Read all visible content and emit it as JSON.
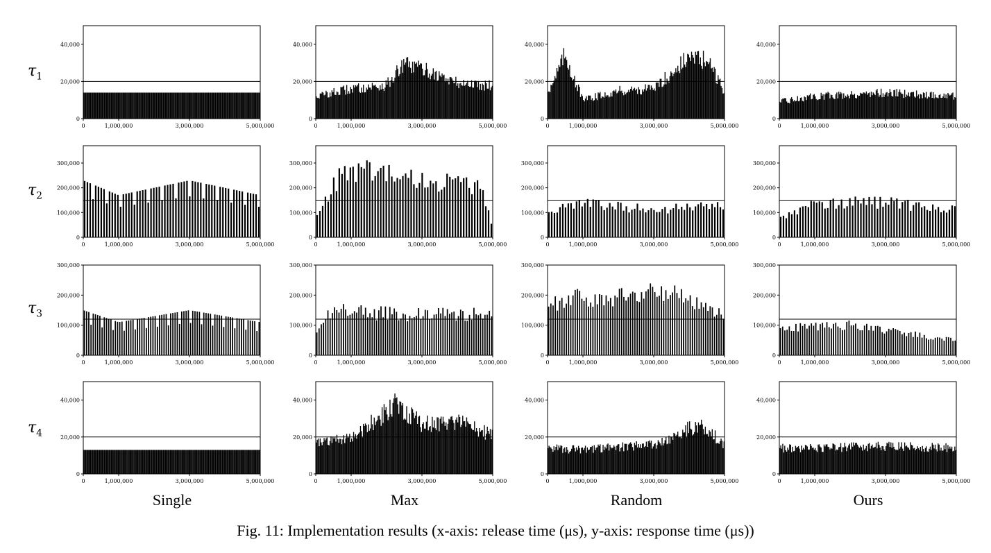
{
  "caption": "Fig. 11: Implementation results (x-axis: release time (μs), y-axis: response time (μs))",
  "columns": [
    "Single",
    "Max",
    "Random",
    "Ours"
  ],
  "rows": [
    {
      "sym": "τ",
      "sub": "1"
    },
    {
      "sym": "τ",
      "sub": "2"
    },
    {
      "sym": "τ",
      "sub": "3"
    },
    {
      "sym": "τ",
      "sub": "4"
    }
  ],
  "x_ticks": [
    "0",
    "1,000,000",
    "3,000,000",
    "5,000,000"
  ],
  "x_tick_values": [
    0,
    1000000,
    3000000,
    5000000
  ],
  "bar_color": "#000000",
  "chart_data": [
    {
      "type": "bar",
      "row": "τ1",
      "column": "Single",
      "xlim": [
        0,
        5000000
      ],
      "ylim": [
        0,
        50000
      ],
      "y_ticks": [
        0,
        20000,
        40000
      ],
      "y_tick_labels": [
        "0",
        "20,000",
        "40,000"
      ],
      "threshold": 20000,
      "bar_count": 180,
      "x": [
        0,
        1000000,
        2000000,
        3000000,
        4000000,
        5000000
      ],
      "values": [
        14000,
        14000,
        14000,
        14000,
        14000,
        14000
      ]
    },
    {
      "type": "bar",
      "row": "τ1",
      "column": "Max",
      "xlim": [
        0,
        5000000
      ],
      "ylim": [
        0,
        50000
      ],
      "y_ticks": [
        0,
        20000,
        40000
      ],
      "y_tick_labels": [
        "0",
        "20,000",
        "40,000"
      ],
      "threshold": 20000,
      "bar_count": 180,
      "x": [
        0,
        1000000,
        2000000,
        2500000,
        3000000,
        4000000,
        5000000
      ],
      "values": [
        12000,
        16000,
        18000,
        29000,
        27000,
        19000,
        18000
      ]
    },
    {
      "type": "bar",
      "row": "τ1",
      "column": "Random",
      "xlim": [
        0,
        5000000
      ],
      "ylim": [
        0,
        50000
      ],
      "y_ticks": [
        0,
        20000,
        40000
      ],
      "y_tick_labels": [
        "0",
        "20,000",
        "40,000"
      ],
      "threshold": 20000,
      "bar_count": 180,
      "x": [
        0,
        500000,
        1000000,
        2000000,
        3000000,
        4000000,
        4500000,
        5000000
      ],
      "values": [
        14000,
        34000,
        10000,
        15000,
        16000,
        33000,
        31000,
        15000
      ]
    },
    {
      "type": "bar",
      "row": "τ1",
      "column": "Ours",
      "xlim": [
        0,
        5000000
      ],
      "ylim": [
        0,
        50000
      ],
      "y_ticks": [
        0,
        20000,
        40000
      ],
      "y_tick_labels": [
        "0",
        "20,000",
        "40,000"
      ],
      "threshold": 20000,
      "bar_count": 180,
      "x": [
        0,
        1000000,
        2000000,
        3000000,
        4000000,
        5000000
      ],
      "values": [
        9000,
        12000,
        13000,
        14000,
        13000,
        12000
      ]
    },
    {
      "type": "bar",
      "row": "τ2",
      "column": "Single",
      "xlim": [
        0,
        5000000
      ],
      "ylim": [
        0,
        370000
      ],
      "y_ticks": [
        0,
        100000,
        200000,
        300000
      ],
      "y_tick_labels": [
        "0",
        "100,000",
        "200,000",
        "300,000"
      ],
      "threshold": 150000,
      "bar_count": 64,
      "x": [
        0,
        1000000,
        3000000,
        5000000
      ],
      "values": [
        230000,
        170000,
        230000,
        170000
      ]
    },
    {
      "type": "bar",
      "row": "τ2",
      "column": "Max",
      "xlim": [
        0,
        5000000
      ],
      "ylim": [
        0,
        370000
      ],
      "y_ticks": [
        0,
        100000,
        200000,
        300000
      ],
      "y_tick_labels": [
        "0",
        "100,000",
        "200,000",
        "300,000"
      ],
      "threshold": 150000,
      "bar_count": 64,
      "x": [
        0,
        700000,
        1700000,
        2300000,
        4700000,
        5000000
      ],
      "values": [
        80000,
        255000,
        270000,
        240000,
        205000,
        40000
      ]
    },
    {
      "type": "bar",
      "row": "τ2",
      "column": "Random",
      "xlim": [
        0,
        5000000
      ],
      "ylim": [
        0,
        370000
      ],
      "y_ticks": [
        0,
        100000,
        200000,
        300000
      ],
      "y_tick_labels": [
        "0",
        "100,000",
        "200,000",
        "300,000"
      ],
      "threshold": 150000,
      "bar_count": 64,
      "x": [
        0,
        1000000,
        3000000,
        5000000
      ],
      "values": [
        100000,
        140000,
        110000,
        130000
      ]
    },
    {
      "type": "bar",
      "row": "τ2",
      "column": "Ours",
      "xlim": [
        0,
        5000000
      ],
      "ylim": [
        0,
        370000
      ],
      "y_ticks": [
        0,
        100000,
        200000,
        300000
      ],
      "y_tick_labels": [
        "0",
        "100,000",
        "200,000",
        "300,000"
      ],
      "threshold": 150000,
      "bar_count": 64,
      "x": [
        0,
        1000000,
        3000000,
        5000000
      ],
      "values": [
        80000,
        140000,
        140000,
        110000
      ]
    },
    {
      "type": "bar",
      "row": "τ3",
      "column": "Single",
      "xlim": [
        0,
        5000000
      ],
      "ylim": [
        0,
        300000
      ],
      "y_ticks": [
        0,
        100000,
        200000,
        300000
      ],
      "y_tick_labels": [
        "0",
        "100,000",
        "200,000",
        "300,000"
      ],
      "threshold": 120000,
      "bar_count": 80,
      "x": [
        0,
        1000000,
        3000000,
        5000000
      ],
      "values": [
        150000,
        110000,
        150000,
        110000
      ]
    },
    {
      "type": "bar",
      "row": "τ3",
      "column": "Max",
      "xlim": [
        0,
        5000000
      ],
      "ylim": [
        0,
        300000
      ],
      "y_ticks": [
        0,
        100000,
        200000,
        300000
      ],
      "y_tick_labels": [
        "0",
        "100,000",
        "200,000",
        "300,000"
      ],
      "threshold": 120000,
      "bar_count": 80,
      "x": [
        0,
        500000,
        1500000,
        3300000,
        4800000
      ],
      "values": [
        70000,
        160000,
        140000,
        135000,
        135000
      ]
    },
    {
      "type": "bar",
      "row": "τ3",
      "column": "Random",
      "xlim": [
        0,
        5000000
      ],
      "ylim": [
        0,
        300000
      ],
      "y_ticks": [
        0,
        100000,
        200000,
        300000
      ],
      "y_tick_labels": [
        "0",
        "100,000",
        "200,000",
        "300,000"
      ],
      "threshold": 120000,
      "bar_count": 80,
      "x": [
        0,
        700000,
        1200000,
        3000000,
        3600000,
        5000000
      ],
      "values": [
        160000,
        200000,
        175000,
        210000,
        210000,
        140000
      ]
    },
    {
      "type": "bar",
      "row": "τ3",
      "column": "Ours",
      "xlim": [
        0,
        5000000
      ],
      "ylim": [
        0,
        300000
      ],
      "y_ticks": [
        0,
        100000,
        200000,
        300000
      ],
      "y_tick_labels": [
        "0",
        "100,000",
        "200,000",
        "300,000"
      ],
      "threshold": 120000,
      "bar_count": 80,
      "x": [
        0,
        2000000,
        3000000,
        5000000
      ],
      "values": [
        90000,
        100000,
        80000,
        50000
      ]
    },
    {
      "type": "bar",
      "row": "τ4",
      "column": "Single",
      "xlim": [
        0,
        5000000
      ],
      "ylim": [
        0,
        50000
      ],
      "y_ticks": [
        0,
        20000,
        40000
      ],
      "y_tick_labels": [
        "0",
        "20,000",
        "40,000"
      ],
      "threshold": 20000,
      "bar_count": 180,
      "x": [
        0,
        1000000,
        3000000,
        5000000
      ],
      "values": [
        13000,
        13000,
        13000,
        13000
      ]
    },
    {
      "type": "bar",
      "row": "τ4",
      "column": "Max",
      "xlim": [
        0,
        5000000
      ],
      "ylim": [
        0,
        50000
      ],
      "y_ticks": [
        0,
        20000,
        40000
      ],
      "y_tick_labels": [
        "0",
        "20,000",
        "40,000"
      ],
      "threshold": 20000,
      "bar_count": 180,
      "x": [
        0,
        1000000,
        2300000,
        3000000,
        4000000,
        5000000
      ],
      "values": [
        17000,
        19000,
        38000,
        27000,
        28000,
        21000
      ]
    },
    {
      "type": "bar",
      "row": "τ4",
      "column": "Random",
      "xlim": [
        0,
        5000000
      ],
      "ylim": [
        0,
        50000
      ],
      "y_ticks": [
        0,
        20000,
        40000
      ],
      "y_tick_labels": [
        "0",
        "20,000",
        "40,000"
      ],
      "threshold": 20000,
      "bar_count": 180,
      "x": [
        0,
        1000000,
        3000000,
        4300000,
        5000000
      ],
      "values": [
        14000,
        13000,
        16000,
        27000,
        16000
      ]
    },
    {
      "type": "bar",
      "row": "τ4",
      "column": "Ours",
      "xlim": [
        0,
        5000000
      ],
      "ylim": [
        0,
        50000
      ],
      "y_ticks": [
        0,
        20000,
        40000
      ],
      "y_tick_labels": [
        "0",
        "20,000",
        "40,000"
      ],
      "threshold": 20000,
      "bar_count": 180,
      "x": [
        0,
        1000000,
        3000000,
        5000000
      ],
      "values": [
        14000,
        14000,
        15000,
        14000
      ]
    }
  ]
}
